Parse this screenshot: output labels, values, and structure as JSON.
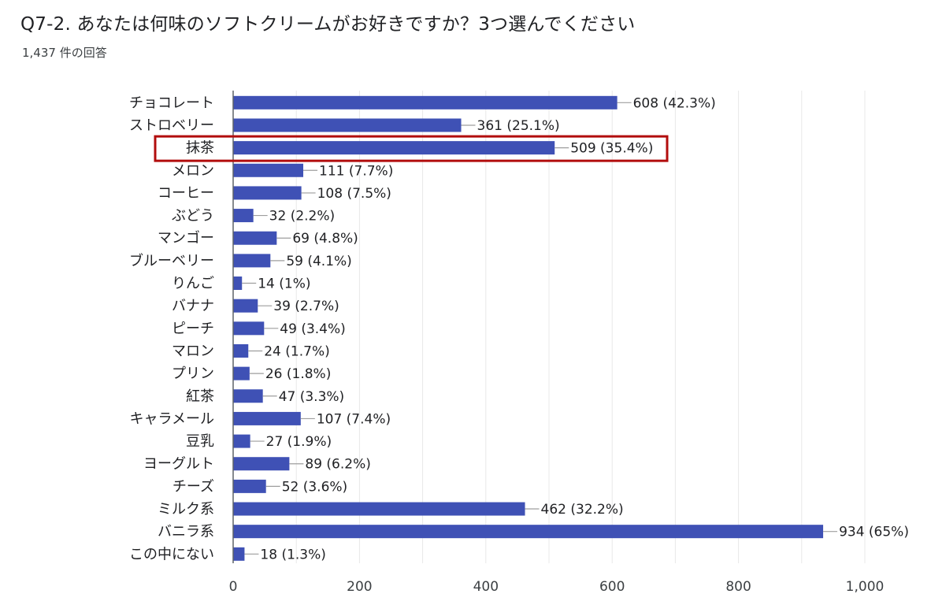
{
  "title": "Q7-2. あなたは何味のソフトクリームがお好きですか？3つ選んでください",
  "subtitle": "1,437 件の回答",
  "highlight_category": "抹茶",
  "colors": {
    "bar": "#3f51b5",
    "highlight_border": "#b20d0d",
    "grid": "#e8e8e8",
    "axis": "#5f6368",
    "connector": "#9e9e9e"
  },
  "chart_data": {
    "type": "bar",
    "orientation": "horizontal",
    "title": "Q7-2. あなたは何味のソフトクリームがお好きですか？3つ選んでください",
    "subtitle": "1,437 件の回答",
    "xlabel": "",
    "ylabel": "",
    "xlim": [
      0,
      1000
    ],
    "xticks": [
      0,
      200,
      400,
      600,
      800,
      1000
    ],
    "xtick_labels": [
      "0",
      "200",
      "400",
      "600",
      "800",
      "1,000"
    ],
    "grid": true,
    "categories": [
      "チョコレート",
      "ストロベリー",
      "抹茶",
      "メロン",
      "コーヒー",
      "ぶどう",
      "マンゴー",
      "ブルーベリー",
      "りんご",
      "バナナ",
      "ピーチ",
      "マロン",
      "プリン",
      "紅茶",
      "キャラメール",
      "豆乳",
      "ヨーグルト",
      "チーズ",
      "ミルク系",
      "バニラ系",
      "この中にない"
    ],
    "values": [
      608,
      361,
      509,
      111,
      108,
      32,
      69,
      59,
      14,
      39,
      49,
      24,
      26,
      47,
      107,
      27,
      89,
      52,
      462,
      934,
      18
    ],
    "data_labels": [
      "608 (42.3%)",
      "361 (25.1%)",
      "509 (35.4%)",
      "111 (7.7%)",
      "108 (7.5%)",
      "32 (2.2%)",
      "69 (4.8%)",
      "59 (4.1%)",
      "14 (1%)",
      "39 (2.7%)",
      "49 (3.4%)",
      "24 (1.7%)",
      "26 (1.8%)",
      "47 (3.3%)",
      "107 (7.4%)",
      "27 (1.9%)",
      "89 (6.2%)",
      "52 (3.6%)",
      "462 (32.2%)",
      "934 (65%)",
      "18 (1.3%)"
    ]
  }
}
